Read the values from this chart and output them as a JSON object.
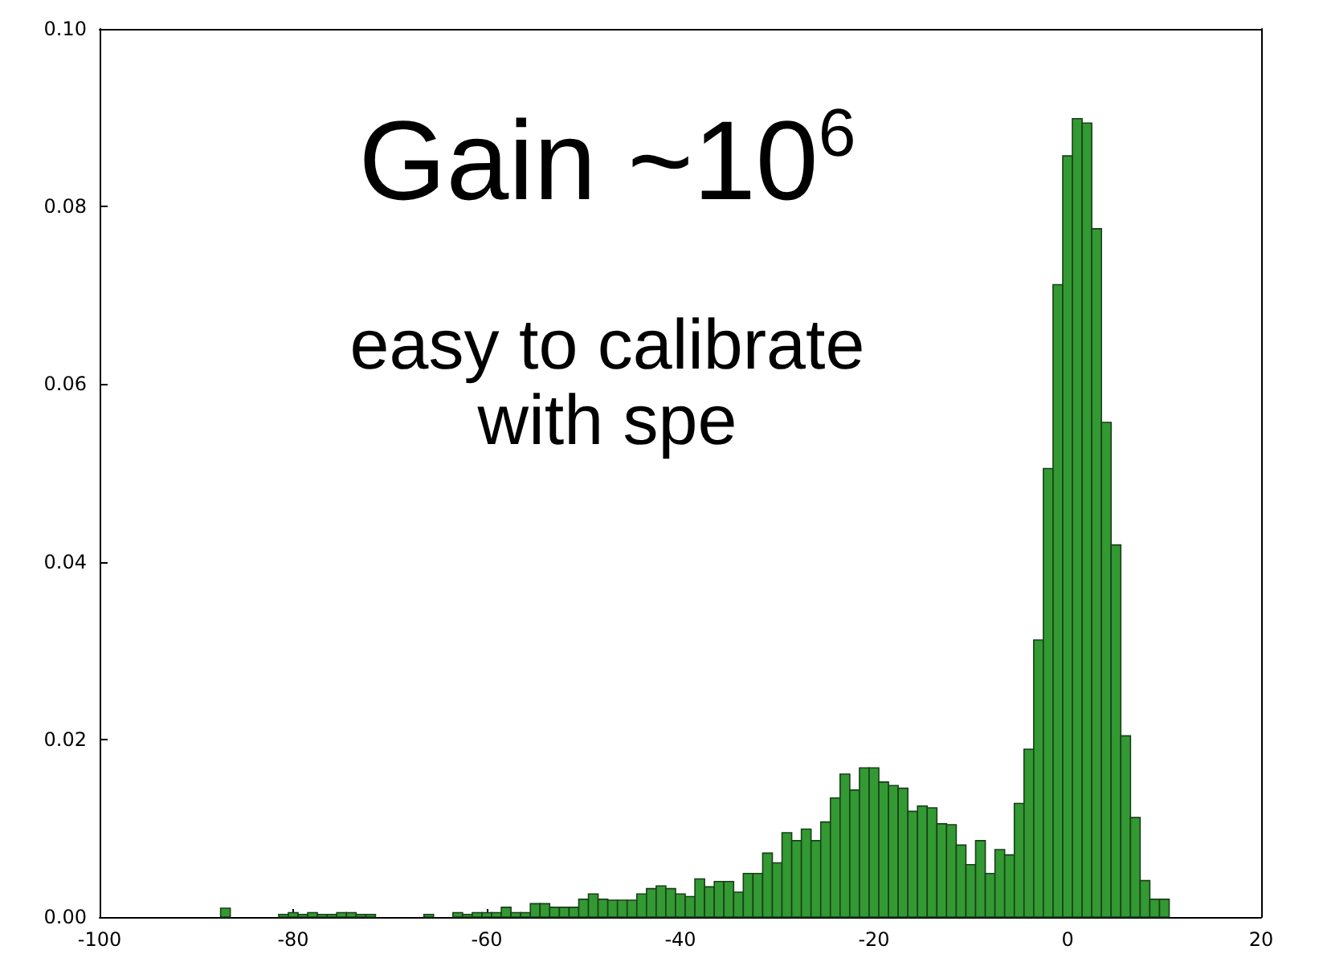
{
  "chart_data": {
    "type": "histogram",
    "annotations": [
      "Gain ~10$^{6}$",
      "easy to calibrate",
      "with spe"
    ],
    "bins": [
      -89.5,
      -88.5,
      -87.5,
      -86.5,
      -85.5,
      -84.5,
      -83.5,
      -82.5,
      -81.5,
      -80.5,
      -79.5,
      -78.5,
      -77.5,
      -76.5,
      -75.5,
      -74.5,
      -73.5,
      -72.5,
      -71.5,
      -70.5,
      -69.5,
      -68.5,
      -67.5,
      -66.5,
      -65.5,
      -64.5,
      -63.5,
      -62.5,
      -61.5,
      -60.5,
      -59.5,
      -58.5,
      -57.5,
      -56.5,
      -55.5,
      -54.5,
      -53.5,
      -52.5,
      -51.5,
      -50.5,
      -49.5,
      -48.5,
      -47.5,
      -46.5,
      -45.5,
      -44.5,
      -43.5,
      -42.5,
      -41.5,
      -40.5,
      -39.5,
      -38.5,
      -37.5,
      -36.5,
      -35.5,
      -34.5,
      -33.5,
      -32.5,
      -31.5,
      -30.5,
      -29.5,
      -28.5,
      -27.5,
      -26.5,
      -25.5,
      -24.5,
      -23.5,
      -22.5,
      -21.5,
      -20.5,
      -19.5,
      -18.5,
      -17.5,
      -16.5,
      -15.5,
      -14.5,
      -13.5,
      -12.5,
      -11.5,
      -10.5,
      -9.5,
      -8.5,
      -7.5,
      -6.5,
      -5.5,
      -4.5,
      -3.5,
      -2.5,
      -1.5,
      -0.5,
      0.5,
      1.5,
      2.5,
      3.5,
      4.5,
      5.5,
      6.5,
      7.5,
      8.5,
      9.5,
      10.5
    ],
    "values": [
      0,
      0,
      0.001,
      0,
      0,
      0,
      0,
      0,
      0.0003,
      0.0005,
      0.0003,
      0.0005,
      0.0003,
      0.0003,
      0.0005,
      0.0005,
      0.0003,
      0.0003,
      0,
      0,
      0,
      0,
      0,
      0.0003,
      0,
      0,
      0.0005,
      0.0003,
      0.0005,
      0.0005,
      0.0005,
      0.0011,
      0.0005,
      0.0005,
      0.0015,
      0.0015,
      0.0011,
      0.0011,
      0.0011,
      0.002,
      0.0026,
      0.002,
      0.0019,
      0.0019,
      0.0019,
      0.0026,
      0.0032,
      0.0035,
      0.0032,
      0.0026,
      0.0023,
      0.0043,
      0.0034,
      0.004,
      0.004,
      0.0028,
      0.0049,
      0.0049,
      0.0072,
      0.0061,
      0.0095,
      0.0086,
      0.0099,
      0.0086,
      0.0107,
      0.0134,
      0.0161,
      0.0143,
      0.0168,
      0.0168,
      0.0152,
      0.0148,
      0.0145,
      0.0119,
      0.0125,
      0.0123,
      0.0105,
      0.0104,
      0.0081,
      0.0059,
      0.0086,
      0.0049,
      0.0076,
      0.007,
      0.0128,
      0.0189,
      0.0312,
      0.0505,
      0.0712,
      0.0857,
      0.0899,
      0.0894,
      0.0775,
      0.0557,
      0.0419,
      0.0204,
      0.0112,
      0.0041,
      0.002,
      0.002
    ],
    "color": "#339933",
    "xlim": [
      -100,
      20
    ],
    "xticks": [
      -100,
      -80,
      -60,
      -40,
      -20,
      0,
      20
    ],
    "ylim": [
      0,
      0.1
    ],
    "yticks": [
      {
        "value": 0,
        "label": "0.00"
      },
      {
        "value": 0.02,
        "label": "0.02"
      },
      {
        "value": 0.04,
        "label": "0.04"
      },
      {
        "value": 0.06,
        "label": "0.06"
      },
      {
        "value": 0.08,
        "label": "0.08"
      },
      {
        "value": 0.1,
        "label": "0.10"
      }
    ],
    "grid": false
  }
}
